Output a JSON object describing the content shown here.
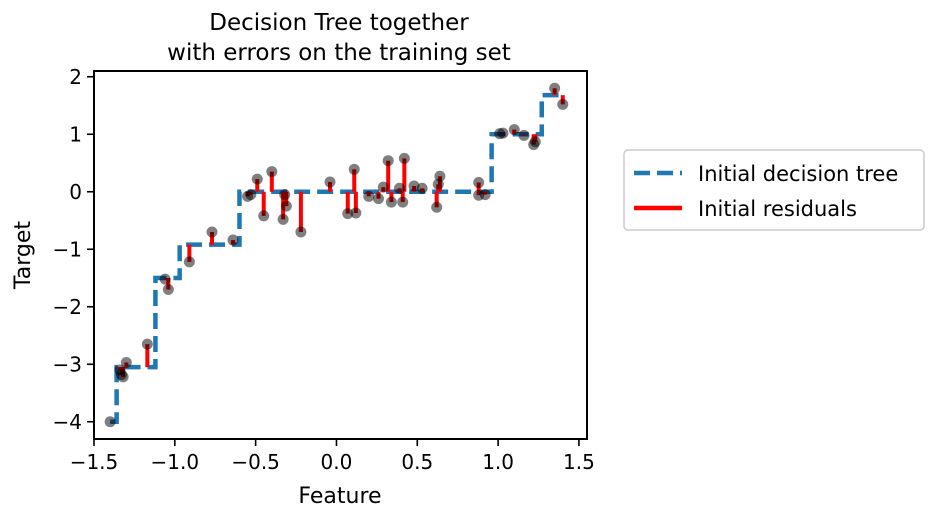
{
  "chart_data": {
    "type": "scatter",
    "title": [
      "Decision Tree together",
      "with errors on the training set"
    ],
    "xlabel": "Feature",
    "ylabel": "Target",
    "xlim": [
      -1.5,
      1.55
    ],
    "ylim": [
      -4.3,
      2.1
    ],
    "xticks": [
      -1.5,
      -1.0,
      -0.5,
      0.0,
      0.5,
      1.0,
      1.5
    ],
    "xtick_labels": [
      "−1.5",
      "−1.0",
      "−0.5",
      "0.0",
      "0.5",
      "1.0",
      "1.5"
    ],
    "yticks": [
      -4,
      -3,
      -2,
      -1,
      0,
      1,
      2
    ],
    "ytick_labels": [
      "−4",
      "−3",
      "−2",
      "−1",
      "0",
      "1",
      "2"
    ],
    "grid": false,
    "legend_position": "outside-right",
    "colors": {
      "tree": "#1f77b4",
      "residuals": "#ff0000",
      "points": "#000000"
    },
    "tree_step": {
      "name": "Initial decision tree",
      "style": "dashed",
      "segments": [
        {
          "x0": -1.4,
          "x1": -1.36,
          "y": -4.0
        },
        {
          "x0": -1.36,
          "x1": -1.12,
          "y": -3.05
        },
        {
          "x0": -1.12,
          "x1": -0.97,
          "y": -1.5
        },
        {
          "x0": -0.97,
          "x1": -0.6,
          "y": -0.92
        },
        {
          "x0": -0.6,
          "x1": 0.96,
          "y": 0.0
        },
        {
          "x0": 0.96,
          "x1": 1.27,
          "y": 1.0
        },
        {
          "x0": 1.27,
          "x1": 1.4,
          "y": 1.68
        }
      ]
    },
    "residuals_name": "Initial residuals",
    "points": [
      {
        "x": -1.4,
        "y": -4.0,
        "pred": -4.0
      },
      {
        "x": -1.34,
        "y": -3.1,
        "pred": -3.05
      },
      {
        "x": -1.33,
        "y": -3.18,
        "pred": -3.05
      },
      {
        "x": -1.32,
        "y": -3.22,
        "pred": -3.05
      },
      {
        "x": -1.3,
        "y": -2.97,
        "pred": -3.05
      },
      {
        "x": -1.17,
        "y": -2.65,
        "pred": -3.05
      },
      {
        "x": -1.06,
        "y": -1.52,
        "pred": -1.5
      },
      {
        "x": -1.04,
        "y": -1.7,
        "pred": -1.5
      },
      {
        "x": -0.91,
        "y": -1.22,
        "pred": -0.92
      },
      {
        "x": -0.77,
        "y": -0.7,
        "pred": -0.92
      },
      {
        "x": -0.64,
        "y": -0.84,
        "pred": -0.92
      },
      {
        "x": -0.55,
        "y": -0.08,
        "pred": 0.0
      },
      {
        "x": -0.53,
        "y": -0.05,
        "pred": 0.0
      },
      {
        "x": -0.49,
        "y": 0.22,
        "pred": 0.0
      },
      {
        "x": -0.45,
        "y": -0.42,
        "pred": 0.0
      },
      {
        "x": -0.4,
        "y": 0.35,
        "pred": 0.0
      },
      {
        "x": -0.33,
        "y": -0.48,
        "pred": 0.0
      },
      {
        "x": -0.32,
        "y": -0.05,
        "pred": 0.0
      },
      {
        "x": -0.31,
        "y": -0.25,
        "pred": 0.0
      },
      {
        "x": -0.22,
        "y": -0.7,
        "pred": 0.0
      },
      {
        "x": -0.04,
        "y": 0.17,
        "pred": 0.0
      },
      {
        "x": 0.07,
        "y": -0.38,
        "pred": 0.0
      },
      {
        "x": 0.11,
        "y": 0.39,
        "pred": 0.0
      },
      {
        "x": 0.12,
        "y": -0.37,
        "pred": 0.0
      },
      {
        "x": 0.2,
        "y": -0.08,
        "pred": 0.0
      },
      {
        "x": 0.26,
        "y": -0.12,
        "pred": 0.0
      },
      {
        "x": 0.29,
        "y": 0.08,
        "pred": 0.0
      },
      {
        "x": 0.32,
        "y": 0.54,
        "pred": 0.0
      },
      {
        "x": 0.34,
        "y": -0.18,
        "pred": 0.0
      },
      {
        "x": 0.39,
        "y": 0.06,
        "pred": 0.0
      },
      {
        "x": 0.41,
        "y": -0.18,
        "pred": 0.0
      },
      {
        "x": 0.42,
        "y": 0.58,
        "pred": 0.0
      },
      {
        "x": 0.48,
        "y": 0.1,
        "pred": 0.0
      },
      {
        "x": 0.53,
        "y": 0.06,
        "pred": 0.0
      },
      {
        "x": 0.62,
        "y": -0.27,
        "pred": 0.0
      },
      {
        "x": 0.63,
        "y": 0.13,
        "pred": 0.0
      },
      {
        "x": 0.64,
        "y": 0.27,
        "pred": 0.0
      },
      {
        "x": 0.88,
        "y": 0.16,
        "pred": 0.0
      },
      {
        "x": 0.88,
        "y": -0.06,
        "pred": 0.0
      },
      {
        "x": 0.92,
        "y": -0.05,
        "pred": 0.0
      },
      {
        "x": 1.01,
        "y": 1.01,
        "pred": 1.0
      },
      {
        "x": 1.03,
        "y": 1.02,
        "pred": 1.0
      },
      {
        "x": 1.1,
        "y": 1.08,
        "pred": 1.0
      },
      {
        "x": 1.16,
        "y": 0.98,
        "pred": 1.0
      },
      {
        "x": 1.22,
        "y": 0.82,
        "pred": 1.0
      },
      {
        "x": 1.23,
        "y": 0.87,
        "pred": 1.0
      },
      {
        "x": 1.35,
        "y": 1.8,
        "pred": 1.68
      },
      {
        "x": 1.4,
        "y": 1.52,
        "pred": 1.68
      }
    ]
  }
}
